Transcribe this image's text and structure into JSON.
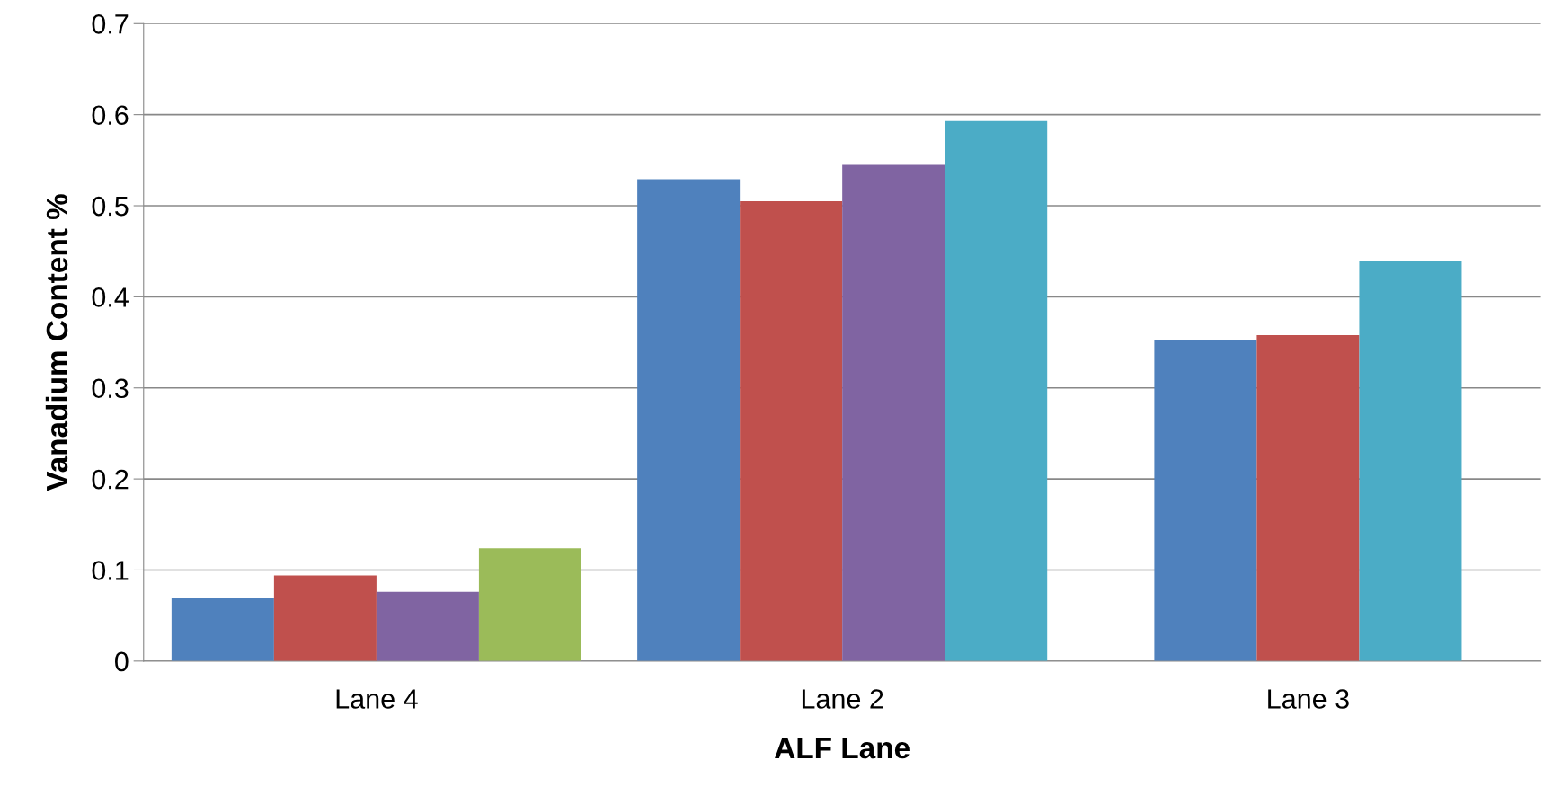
{
  "chart_data": {
    "type": "bar",
    "xlabel": "ALF Lane",
    "ylabel": "Vanadium Content %",
    "categories": [
      "Lane 4",
      "Lane 2",
      "Lane 3"
    ],
    "series": [
      {
        "color": "#4f81bd",
        "values": [
          0.069,
          0.529,
          0.353
        ]
      },
      {
        "color": "#c0504d",
        "values": [
          0.094,
          0.505,
          0.358
        ]
      },
      {
        "color": "#8064a2",
        "values": [
          0.076,
          0.545,
          null
        ]
      },
      {
        "color": "#9bbb59",
        "values": [
          0.124,
          null,
          null
        ]
      },
      {
        "color": "#4bacc6",
        "values": [
          null,
          0.593,
          0.439
        ]
      }
    ],
    "ylim": [
      0,
      0.7
    ],
    "yticks": [
      0,
      0.1,
      0.2,
      0.3,
      0.4,
      0.5,
      0.6,
      0.7
    ],
    "grid": "y",
    "legend": false
  }
}
